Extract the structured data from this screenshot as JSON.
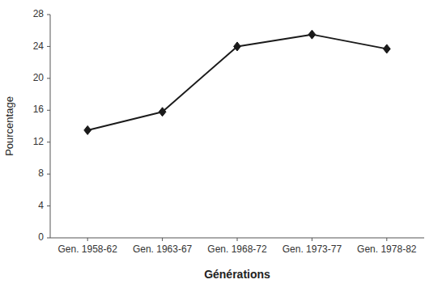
{
  "chart_data": {
    "type": "line",
    "categories": [
      "Gen. 1958-62",
      "Gen. 1963-67",
      "Gen. 1968-72",
      "Gen. 1973-77",
      "Gen. 1978-82"
    ],
    "values": [
      13.5,
      15.8,
      24.0,
      25.5,
      23.7
    ],
    "xlabel": "Générations",
    "ylabel": "Pourcentage",
    "ylim": [
      0,
      28
    ],
    "yticks": [
      0,
      4,
      8,
      12,
      16,
      20,
      24,
      28
    ],
    "color": "#1a1a1a",
    "marker": "diamond",
    "grid": false
  }
}
